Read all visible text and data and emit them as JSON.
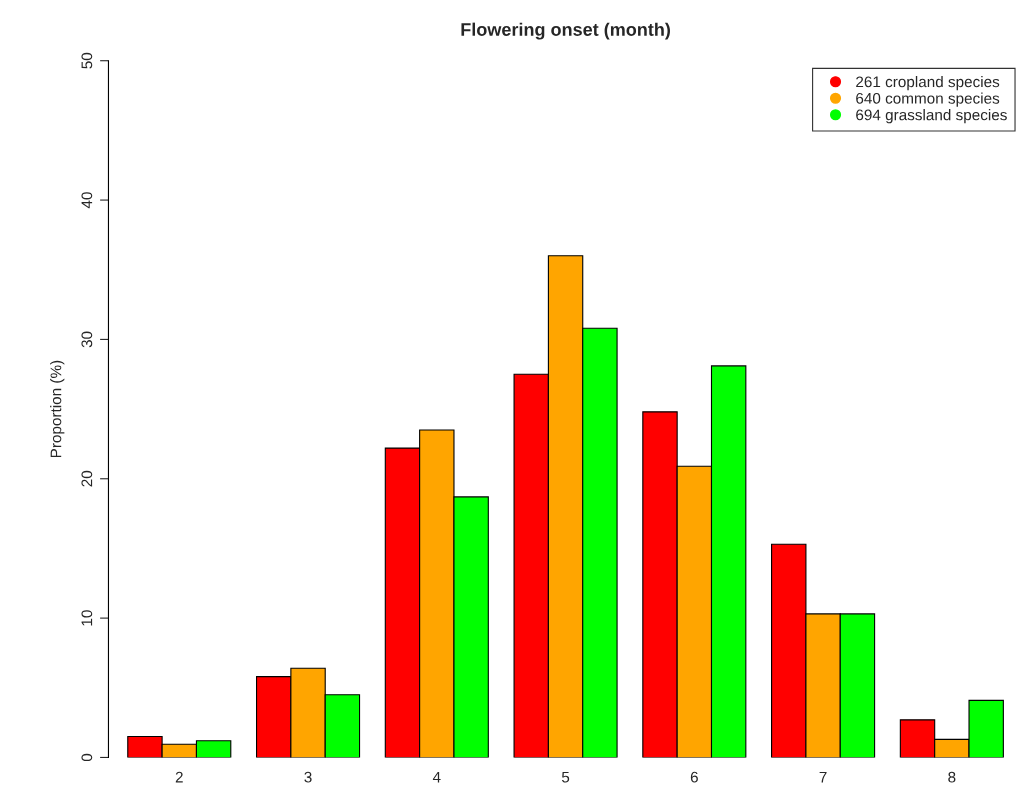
{
  "chart_data": {
    "type": "bar",
    "title": "Flowering onset (month)",
    "ylabel": "Proportion (%)",
    "categories": [
      "2",
      "3",
      "4",
      "5",
      "6",
      "7",
      "8"
    ],
    "series": [
      {
        "name": "261 cropland species",
        "color": "#ff0000",
        "values": [
          1.5,
          5.8,
          22.2,
          27.5,
          24.8,
          15.3,
          2.7
        ]
      },
      {
        "name": "640 common species",
        "color": "#ffa500",
        "values": [
          0.95,
          6.4,
          23.5,
          36.0,
          20.9,
          10.3,
          1.3
        ]
      },
      {
        "name": "694 grassland species",
        "color": "#00ff00",
        "values": [
          1.2,
          4.5,
          18.7,
          30.8,
          28.1,
          10.3,
          4.1
        ]
      }
    ],
    "ylim": [
      0,
      50
    ],
    "yticks": [
      0,
      10,
      20,
      30,
      40,
      50
    ],
    "grid": false,
    "legend": "top right"
  }
}
